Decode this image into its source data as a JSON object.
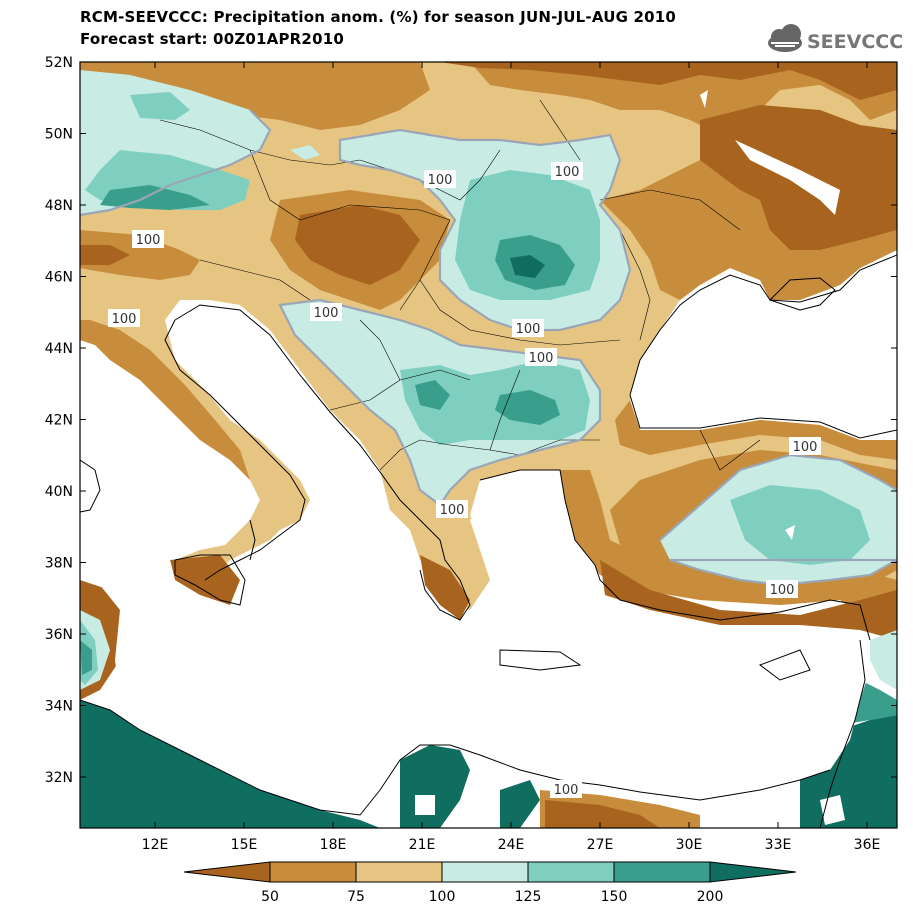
{
  "title": {
    "line1": "RCM-SEEVCCC: Precipitation anom. (%) for season JUN-JUL-AUG 2010",
    "line2": "Forecast start: 00Z01APR2010"
  },
  "logo": {
    "text": "SEEVCCC",
    "icon": "cloud-icon"
  },
  "axes": {
    "lat_labels": [
      "52N",
      "50N",
      "48N",
      "46N",
      "44N",
      "42N",
      "40N",
      "38N",
      "36N",
      "34N",
      "32N"
    ],
    "lon_labels": [
      "12E",
      "15E",
      "18E",
      "21E",
      "24E",
      "27E",
      "30E",
      "33E",
      "36E"
    ]
  },
  "contour_labels": [
    "100",
    "100",
    "100",
    "100",
    "100",
    "100",
    "100",
    "100",
    "100",
    "100",
    "100"
  ],
  "colorbar": {
    "ticks": [
      "50",
      "75",
      "100",
      "125",
      "150",
      "200"
    ],
    "colors": [
      "#a8641e",
      "#c78d3c",
      "#e6c582",
      "#c8ece4",
      "#7fcfc0",
      "#3a9e8c",
      "#0f6e60"
    ]
  },
  "palette": {
    "water": "#ffffff",
    "dark_brown": "#a8641e",
    "mid_brown": "#c78d3c",
    "tan": "#e6c582",
    "pale_teal": "#c8ece4",
    "mid_teal": "#7fcfc0",
    "teal": "#3a9e8c",
    "dark_teal": "#0f6e60",
    "contour": "#9aa6b8"
  }
}
